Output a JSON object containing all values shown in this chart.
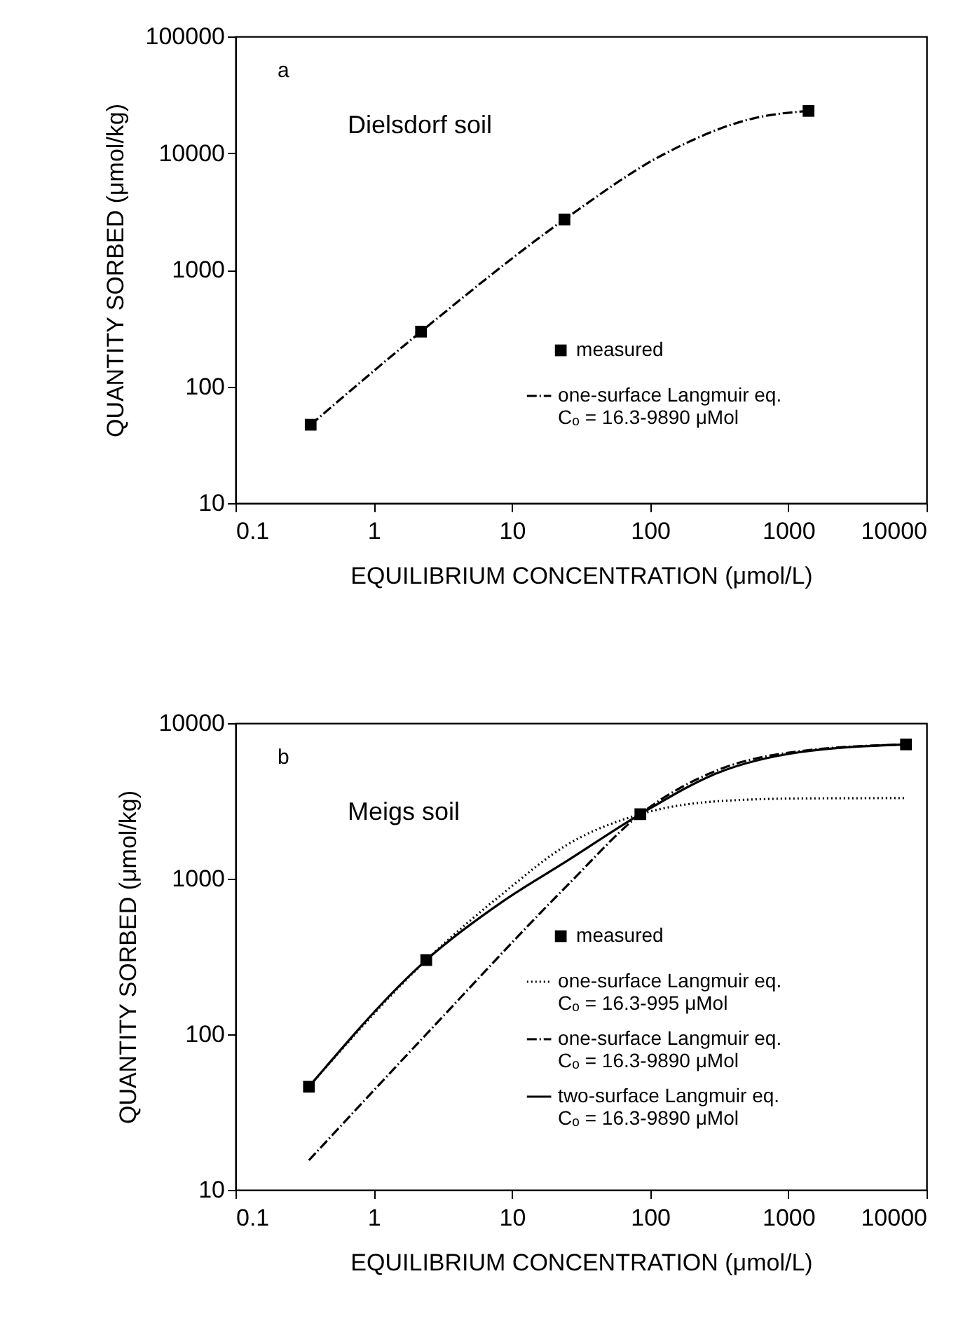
{
  "chart_data": [
    {
      "type": "line",
      "log": "xy",
      "grid": false,
      "legend": "bottom right",
      "xlabel": "EQUILIBRIUM CONCENTRATION (μmol/L)",
      "ylabel": "QUANTITY SORBED (μmol/kg)",
      "xlim": [
        0.1,
        10000
      ],
      "ylim": [
        10,
        100000
      ],
      "xticks": [
        0.1,
        1,
        10,
        100,
        1000,
        10000
      ],
      "yticks": [
        10,
        100,
        1000,
        10000,
        100000
      ],
      "annotations": [
        "a",
        "Dielsdorf soil"
      ],
      "series": [
        {
          "name": "measured",
          "type": "scatter",
          "marker": "square",
          "color": "#000000",
          "x": [
            0.35,
            2.2,
            24,
            1400
          ],
          "values": [
            47,
            295,
            2700,
            23000
          ]
        },
        {
          "name": "one-surface Langmuir eq.\nCₒ = 16.3-9890 μMol",
          "type": "line",
          "line_style": "dashdot",
          "color": "#000000",
          "x": [
            0.35,
            2.2,
            24,
            126,
            575,
            1400
          ],
          "values": [
            47,
            295,
            2700,
            9800,
            20000,
            23000
          ]
        }
      ]
    },
    {
      "type": "line",
      "log": "xy",
      "grid": false,
      "legend": "bottom right",
      "xlabel": "EQUILIBRIUM CONCENTRATION (μmol/L)",
      "ylabel": "QUANTITY SORBED (μmol/kg)",
      "xlim": [
        0.1,
        10000
      ],
      "ylim": [
        10,
        10000
      ],
      "xticks": [
        0.1,
        1,
        10,
        100,
        1000,
        10000
      ],
      "yticks": [
        10,
        100,
        1000,
        10000
      ],
      "annotations": [
        "b",
        "Meigs soil"
      ],
      "series": [
        {
          "name": "measured",
          "type": "scatter",
          "marker": "square",
          "color": "#000000",
          "x": [
            0.34,
            2.4,
            85,
            7100
          ],
          "values": [
            46,
            300,
            2600,
            7300
          ]
        },
        {
          "name": "one-surface Langmuir eq.\nCₒ = 16.3-995  μMol",
          "type": "line",
          "line_style": "dotted",
          "color": "#000000",
          "x": [
            0.34,
            2.4,
            8.7,
            25,
            85,
            310,
            1200,
            6900
          ],
          "values": [
            46,
            300,
            810,
            1650,
            2600,
            3150,
            3280,
            3300
          ]
        },
        {
          "name": "one-surface Langmuir eq.\nCₒ = 16.3-9890 μMol",
          "type": "line",
          "line_style": "dashdot",
          "color": "#000000",
          "x": [
            0.34,
            2.4,
            25,
            85,
            310,
            1200,
            7100
          ],
          "values": [
            15.5,
            100,
            900,
            2600,
            5000,
            6600,
            7300
          ]
        },
        {
          "name": "two-surface Langmuir eq.\nCₒ = 16.3-9890 μMol",
          "type": "line",
          "line_style": "solid",
          "color": "#000000",
          "x": [
            0.34,
            2.4,
            8.7,
            25,
            85,
            310,
            1200,
            7100
          ],
          "values": [
            46,
            300,
            720,
            1300,
            2600,
            4800,
            6500,
            7300
          ]
        }
      ]
    }
  ]
}
